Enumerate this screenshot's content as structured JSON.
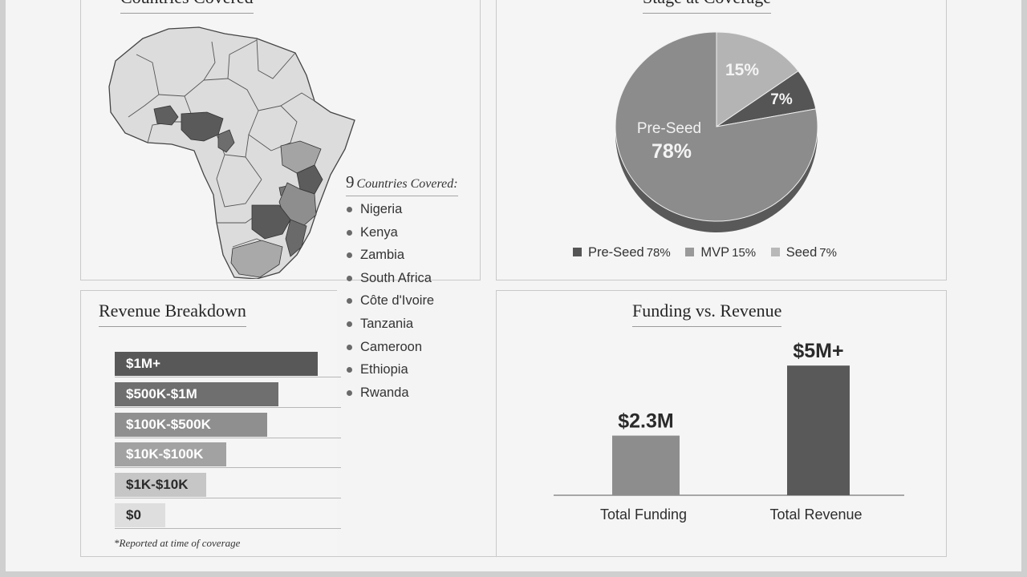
{
  "countries_panel": {
    "title": "Countries Covered",
    "count": "9",
    "count_label": "Countries Covered:",
    "countries": [
      "Nigeria",
      "Kenya",
      "Zambia",
      "South Africa",
      "Côte d'Ivoire",
      "Tanzania",
      "Cameroon",
      "Ethiopia",
      "Rwanda"
    ],
    "map_icon": "africa-map-icon"
  },
  "stage_panel": {
    "title": "Stage at Coverage",
    "slice_name_label": "Pre-Seed",
    "slice_main_label": "78%",
    "slice_mvp_label": "15%",
    "slice_seed_label": "7%",
    "legend": [
      {
        "name": "Pre-Seed",
        "value": "78%"
      },
      {
        "name": "MVP",
        "value": "15%"
      },
      {
        "name": "Seed",
        "value": "7%"
      }
    ]
  },
  "revenue_panel": {
    "title": "Revenue Breakdown",
    "footnote": "*Reported at time of coverage"
  },
  "funding_panel": {
    "title": "Funding vs. Revenue"
  },
  "colors": {
    "dark": "#5b5b5b",
    "medium": "#8a8a8a",
    "light": "#aeaeae",
    "pale": "#d4d4d4"
  },
  "chart_data": [
    {
      "type": "pie",
      "title": "Stage at Coverage",
      "categories": [
        "Pre-Seed",
        "MVP",
        "Seed"
      ],
      "values": [
        78,
        15,
        7
      ],
      "colors": [
        "#8c8c8c",
        "#b4b4b4",
        "#555555"
      ]
    },
    {
      "type": "bar",
      "orientation": "horizontal",
      "title": "Revenue Breakdown",
      "categories": [
        "$1M+",
        "$500K-$1M",
        "$100K-$500K",
        "$10K-$100K",
        "$1K-$10K",
        "$0"
      ],
      "values": [
        100,
        80.5,
        75,
        55,
        45,
        25
      ],
      "colors": [
        "#585858",
        "#6f6f6f",
        "#8f8f8f",
        "#a2a2a2",
        "#c6c6c6",
        "#dedede"
      ],
      "text_colors": [
        "#ffffff",
        "#ffffff",
        "#ffffff",
        "#ffffff",
        "#2a2a2a",
        "#2a2a2a"
      ],
      "xlim": [
        0,
        100
      ]
    },
    {
      "type": "bar",
      "title": "Funding vs. Revenue",
      "categories": [
        "Total Funding",
        "Total Revenue"
      ],
      "values": [
        2.3,
        5
      ],
      "value_labels": [
        "$2.3M",
        "$5M+"
      ],
      "colors": [
        "#8d8d8d",
        "#595959"
      ],
      "ylim": [
        0,
        5.5
      ]
    }
  ]
}
